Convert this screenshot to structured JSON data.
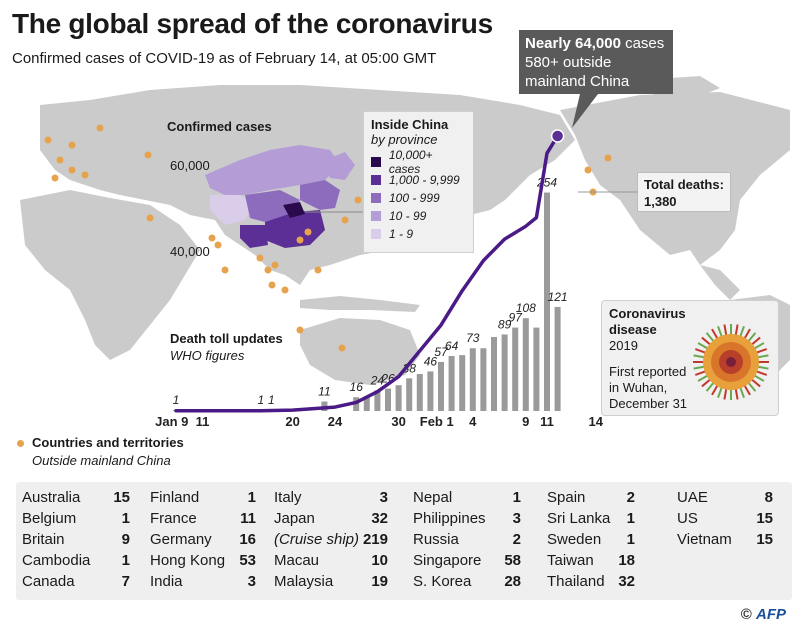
{
  "title": "The global spread of the coronavirus",
  "subtitle": "Confirmed cases of COVID-19 as of February 14, at 05:00 GMT",
  "callout": {
    "line1_bold": "Nearly 64,000",
    "line1_rest": " cases",
    "line2": "580+ outside",
    "line3": "mainland China"
  },
  "map_labels": {
    "confirmed_cases": "Confirmed cases",
    "tick_60000": "60,000",
    "tick_40000": "40,000"
  },
  "china_legend": {
    "title": "Inside China",
    "subtitle": "by province",
    "items": [
      {
        "label": "10,000+ cases",
        "color": "#2a0a4d"
      },
      {
        "label": "1,000 - 9,999",
        "color": "#5b2f95"
      },
      {
        "label": "100 - 999",
        "color": "#8e6cbd"
      },
      {
        "label": "10 - 99",
        "color": "#b49cd6"
      },
      {
        "label": "1 - 9",
        "color": "#d9cdea"
      }
    ]
  },
  "total_deaths": {
    "label": "Total deaths:",
    "value": "1,380"
  },
  "disease": {
    "name1": "Coronavirus",
    "name2": "disease",
    "year": "2019",
    "first1": "First reported",
    "first2": "in Wuhan,",
    "first3": "December 31"
  },
  "death_toll": {
    "label": "Death toll updates",
    "sub": "WHO figures"
  },
  "countries_legend": {
    "label": "Countries and territories",
    "sub": "Outside mainland China"
  },
  "chart_data": {
    "type": "bar",
    "x_tick_labels": [
      "Jan 9",
      "11",
      "20",
      "24",
      "30",
      "Feb 1",
      "4",
      "9",
      "11",
      "14"
    ],
    "death_bars": [
      {
        "day": 9,
        "value": 1,
        "label": "1"
      },
      {
        "day": 11,
        "value": 0
      },
      {
        "day": 17,
        "value": 1,
        "label": "1"
      },
      {
        "day": 18,
        "value": 1,
        "label": "1"
      },
      {
        "day": 23,
        "value": 11,
        "label": "11"
      },
      {
        "day": 26,
        "value": 16,
        "label": "16"
      },
      {
        "day": 27,
        "value": 16
      },
      {
        "day": 28,
        "value": 24,
        "label": "24"
      },
      {
        "day": 29,
        "value": 26,
        "label": "26"
      },
      {
        "day": 30,
        "value": 30
      },
      {
        "day": 31,
        "value": 38,
        "label": "38"
      },
      {
        "day": 32,
        "value": 43
      },
      {
        "day": 33,
        "value": 46,
        "label": "46"
      },
      {
        "day": 34,
        "value": 57,
        "label": "57"
      },
      {
        "day": 35,
        "value": 64,
        "label": "64"
      },
      {
        "day": 36,
        "value": 65
      },
      {
        "day": 37,
        "value": 73,
        "label": "73"
      },
      {
        "day": 38,
        "value": 73
      },
      {
        "day": 39,
        "value": 86
      },
      {
        "day": 40,
        "value": 89,
        "label": "89"
      },
      {
        "day": 41,
        "value": 97,
        "label": "97"
      },
      {
        "day": 42,
        "value": 108,
        "label": "108"
      },
      {
        "day": 43,
        "value": 97
      },
      {
        "day": 44,
        "value": 254,
        "label": "254"
      },
      {
        "day": 45,
        "value": 121,
        "label": "121"
      }
    ],
    "cases_line": {
      "name": "Confirmed cases",
      "points": [
        [
          9,
          41
        ],
        [
          11,
          41
        ],
        [
          17,
          45
        ],
        [
          20,
          200
        ],
        [
          24,
          900
        ],
        [
          26,
          2000
        ],
        [
          28,
          4500
        ],
        [
          30,
          8000
        ],
        [
          32,
          14000
        ],
        [
          34,
          20000
        ],
        [
          36,
          28000
        ],
        [
          38,
          35000
        ],
        [
          40,
          40000
        ],
        [
          42,
          43000
        ],
        [
          43,
          45000
        ],
        [
          44,
          60000
        ],
        [
          45,
          64000
        ]
      ]
    },
    "y_ticks_cases": [
      40000,
      60000
    ]
  },
  "countries": [
    [
      {
        "name": "Australia",
        "value": "15"
      },
      {
        "name": "Belgium",
        "value": "1"
      },
      {
        "name": "Britain",
        "value": "9"
      },
      {
        "name": "Cambodia",
        "value": "1"
      },
      {
        "name": "Canada",
        "value": "7"
      }
    ],
    [
      {
        "name": "Finland",
        "value": "1"
      },
      {
        "name": "France",
        "value": "11"
      },
      {
        "name": "Germany",
        "value": "16"
      },
      {
        "name": "Hong Kong",
        "value": "53"
      },
      {
        "name": "India",
        "value": "3"
      }
    ],
    [
      {
        "name": "Italy",
        "value": "3"
      },
      {
        "name": "Japan",
        "value": "32"
      },
      {
        "name": "(Cruise ship)",
        "value": "219"
      },
      {
        "name": "Macau",
        "value": "10"
      },
      {
        "name": "Malaysia",
        "value": "19"
      }
    ],
    [
      {
        "name": "Nepal",
        "value": "1"
      },
      {
        "name": "Philippines",
        "value": "3"
      },
      {
        "name": "Russia",
        "value": "2"
      },
      {
        "name": "Singapore",
        "value": "58"
      },
      {
        "name": "S. Korea",
        "value": "28"
      }
    ],
    [
      {
        "name": "Spain",
        "value": "2"
      },
      {
        "name": "Sri Lanka",
        "value": "1"
      },
      {
        "name": "Sweden",
        "value": "1"
      },
      {
        "name": "Taiwan",
        "value": "18"
      },
      {
        "name": "Thailand",
        "value": "32"
      }
    ],
    [
      {
        "name": "UAE",
        "value": "8"
      },
      {
        "name": "US",
        "value": "15"
      },
      {
        "name": "Vietnam",
        "value": "15"
      }
    ]
  ],
  "footer": {
    "copy": "©",
    "agency": "AFP"
  },
  "colors": {
    "line": "#4a1a86",
    "bar": "#9a9a9a",
    "land": "#cbcbcb",
    "dot": "#e7a24e"
  }
}
